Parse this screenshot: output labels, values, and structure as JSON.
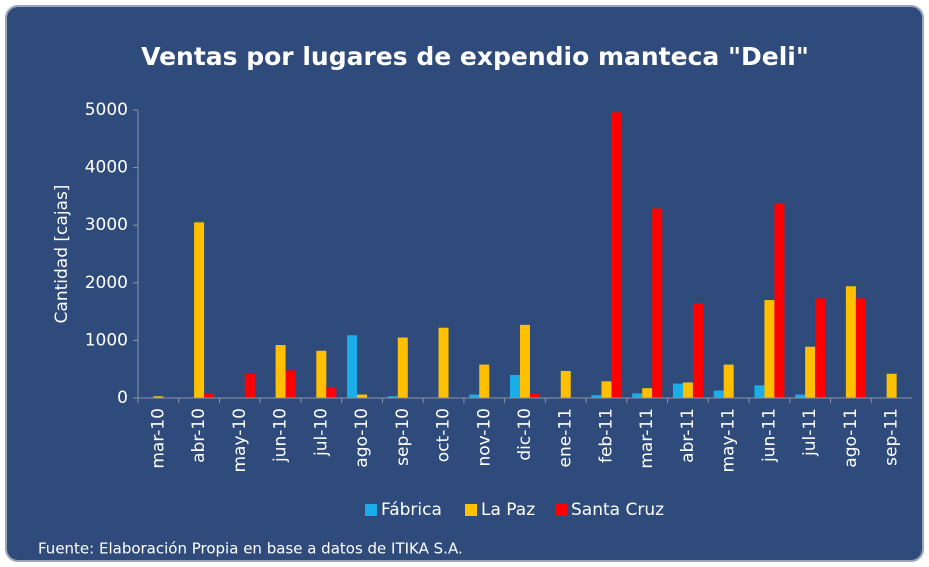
{
  "chart_data": {
    "type": "bar",
    "title": "Ventas por lugares de expendio manteca \"Deli\"",
    "y_label": "Cantidad [cajas]",
    "source": "Fuente: Elaboración Propia en base a datos de ITIKA S.A.",
    "categories": [
      "mar-10",
      "abr-10",
      "may-10",
      "jun-10",
      "jul-10",
      "ago-10",
      "sep-10",
      "oct-10",
      "nov-10",
      "dic-10",
      "ene-11",
      "feb-11",
      "mar-11",
      "abr-11",
      "may-11",
      "jun-11",
      "jul-11",
      "ago-11",
      "sep-11"
    ],
    "series": [
      {
        "name": "Fábrica",
        "color": "#1aadea",
        "values": [
          0,
          0,
          0,
          0,
          0,
          1090,
          30,
          0,
          60,
          400,
          0,
          50,
          80,
          250,
          130,
          220,
          60,
          0,
          0
        ]
      },
      {
        "name": "La Paz",
        "color": "#ffc000",
        "values": [
          30,
          3050,
          0,
          920,
          820,
          60,
          1050,
          1220,
          580,
          1270,
          470,
          290,
          170,
          270,
          580,
          1700,
          890,
          1940,
          420
        ]
      },
      {
        "name": "Santa Cruz",
        "color": "#ff0000",
        "values": [
          0,
          80,
          420,
          480,
          190,
          0,
          0,
          0,
          0,
          70,
          0,
          4960,
          3290,
          1650,
          0,
          3380,
          1730,
          1730,
          0
        ]
      }
    ],
    "ylim": [
      0,
      5000
    ],
    "yticks": [
      0,
      1000,
      2000,
      3000,
      4000,
      5000
    ],
    "grid": false,
    "legend": "bottom"
  }
}
